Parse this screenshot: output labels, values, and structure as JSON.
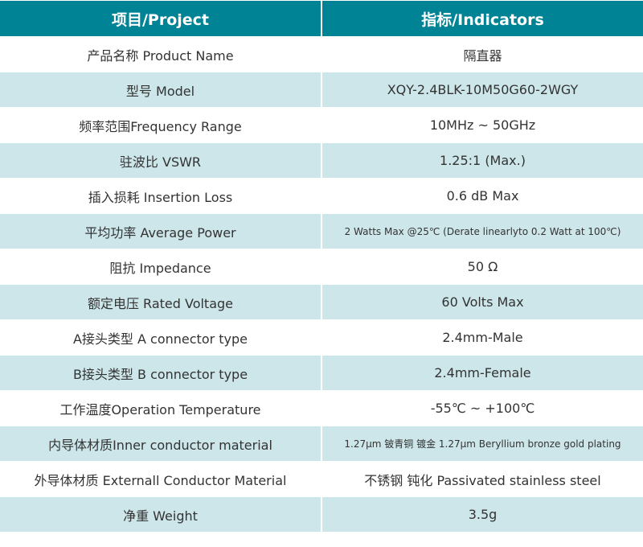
{
  "colors": {
    "header": "#008394",
    "alt_row": "#cde6ea"
  },
  "header": {
    "project": "项目/Project",
    "indicators": "指标/Indicators"
  },
  "rows": [
    {
      "label": "产品名称 Product Name",
      "value": "隔直器"
    },
    {
      "label": "型号 Model",
      "value": "XQY-2.4BLK-10M50G60-2WGY"
    },
    {
      "label": "频率范围Frequency Range",
      "value": "10MHz ~ 50GHz"
    },
    {
      "label": "驻波比 VSWR",
      "value": "1.25:1 (Max.)"
    },
    {
      "label": "插入损耗 Insertion Loss",
      "value": "0.6 dB Max"
    },
    {
      "label": "平均功率 Average Power",
      "value": "2 Watts Max @25℃ (Derate linearlyto 0.2 Watt at 100℃)"
    },
    {
      "label": "阻抗 Impedance",
      "value": "50 Ω"
    },
    {
      "label": "额定电压 Rated Voltage",
      "value": "60 Volts Max"
    },
    {
      "label": "A接头类型 A connector type",
      "value": "2.4mm-Male"
    },
    {
      "label": "B接头类型 B connector type",
      "value": "2.4mm-Female"
    },
    {
      "label": "工作温度Operation Temperature",
      "value": "-55℃ ~ +100℃"
    },
    {
      "label": "内导体材质Inner conductor material",
      "value": "1.27μm 铍青铜 镀金 1.27μm Beryllium bronze gold plating"
    },
    {
      "label": "外导体材质 Externall Conductor Material",
      "value": "不锈钢 钝化 Passivated stainless steel"
    },
    {
      "label": "净重 Weight",
      "value": "3.5g"
    }
  ]
}
